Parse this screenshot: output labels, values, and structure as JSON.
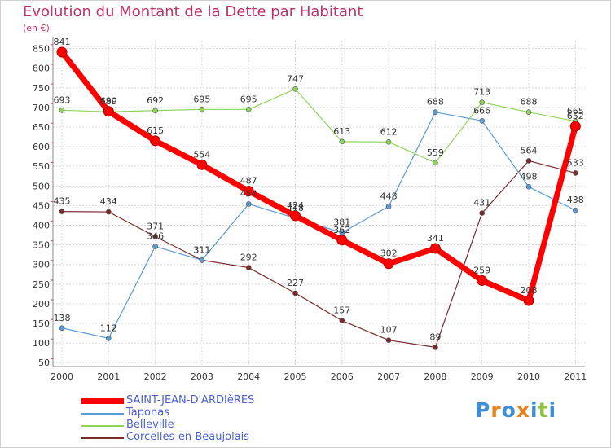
{
  "chart_data": {
    "type": "line",
    "title": "Evolution du Montant de la Dette par Habitant",
    "ylabel": "(en €)",
    "categories": [
      "2000",
      "2001",
      "2002",
      "2003",
      "2004",
      "2005",
      "2006",
      "2007",
      "2008",
      "2009",
      "2010",
      "2011"
    ],
    "yticks": [
      50,
      100,
      150,
      200,
      250,
      300,
      350,
      400,
      450,
      500,
      550,
      600,
      650,
      700,
      750,
      800,
      850
    ],
    "ylim": [
      40,
      870
    ],
    "grid": true,
    "legend_position": "bottom",
    "series": [
      {
        "name": "SAINT-JEAN-D'ARDIèRES",
        "color": "#ff0000",
        "values": [
          841,
          690,
          615,
          554,
          487,
          424,
          362,
          302,
          341,
          259,
          208,
          652
        ]
      },
      {
        "name": "Taponas",
        "color": "#5b9bd5",
        "values": [
          138,
          112,
          346,
          311,
          454,
          418,
          381,
          448,
          688,
          666,
          498,
          438
        ]
      },
      {
        "name": "Belleville",
        "color": "#8fd45a",
        "values": [
          693,
          689,
          692,
          695,
          695,
          747,
          613,
          612,
          559,
          713,
          688,
          665
        ]
      },
      {
        "name": "Corcelles-en-Beaujolais",
        "color": "#7a2a2a",
        "values": [
          435,
          434,
          371,
          311,
          292,
          227,
          157,
          107,
          89,
          431,
          564,
          533
        ]
      }
    ]
  },
  "logo": {
    "text": "Proxiti",
    "colors": [
      "#3c8fd8",
      "#e8821e",
      "#3c8fd8",
      "#e8821e",
      "#3c8fd8",
      "#8fc23c",
      "#3c8fd8"
    ]
  }
}
